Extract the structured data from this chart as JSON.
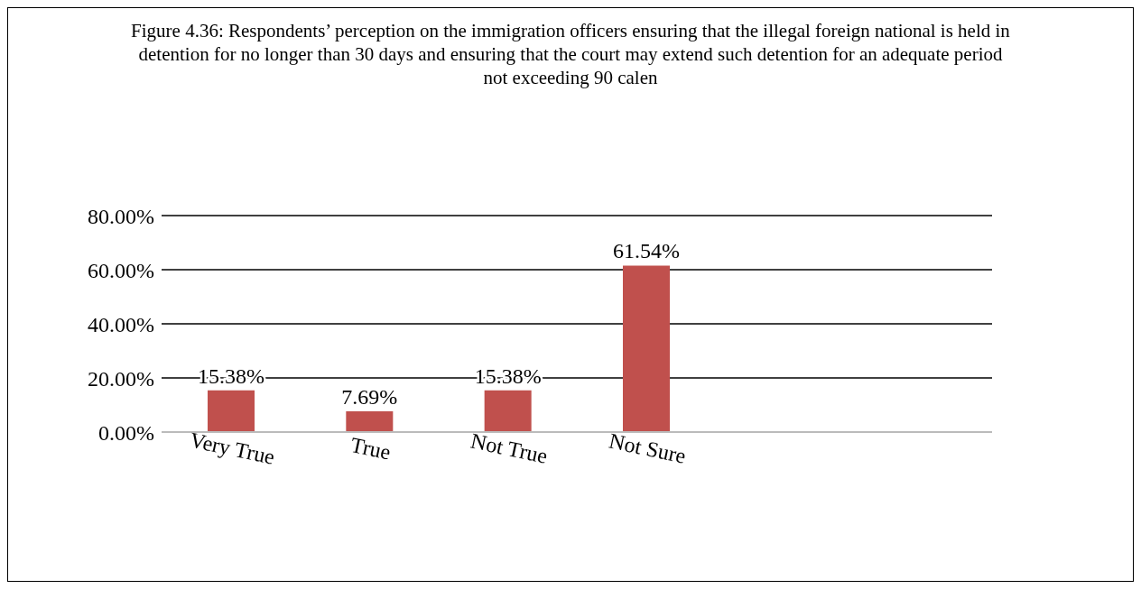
{
  "chart_data": {
    "type": "bar",
    "title": "Figure 4.36: Respondents’ perception on the immigration officers ensuring that the illegal foreign national is held in detention for no longer than 30 days and ensuring that the court may extend such detention for an adequate period not exceeding 90 calen",
    "categories": [
      "Very True",
      "True",
      "Not True",
      "Not Sure",
      null,
      null
    ],
    "values": [
      15.38,
      7.69,
      15.38,
      61.54,
      null,
      null
    ],
    "value_labels": [
      "15.38%",
      "7.69%",
      "15.38%",
      "61.54%",
      null,
      null
    ],
    "color": "#c0504d",
    "ylim": [
      0,
      80
    ],
    "yticks": [
      {
        "value": 0,
        "label": "0.00%"
      },
      {
        "value": 20,
        "label": "20.00%"
      },
      {
        "value": 40,
        "label": "40.00%"
      },
      {
        "value": 60,
        "label": "60.00%"
      },
      {
        "value": 80,
        "label": "80.00%"
      }
    ],
    "grid": "y"
  }
}
